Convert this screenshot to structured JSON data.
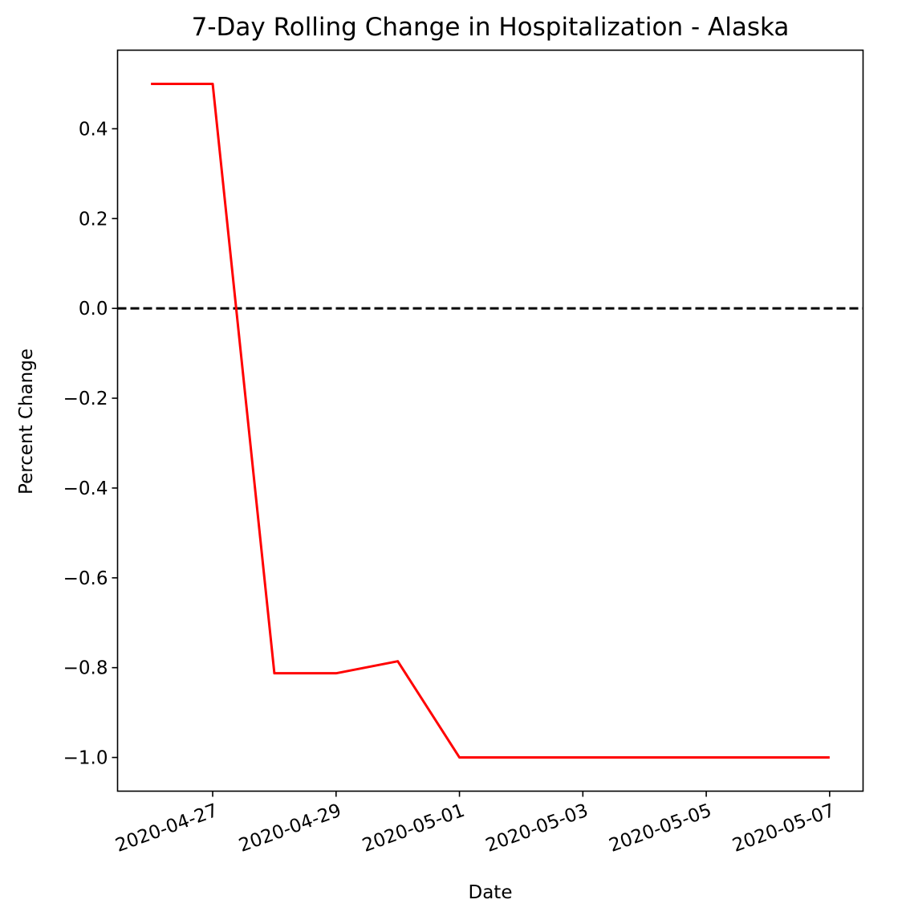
{
  "chart_data": {
    "type": "line",
    "title": "7-Day Rolling Change in Hospitalization - Alaska",
    "xlabel": "Date",
    "ylabel": "Percent Change",
    "x": [
      "2020-04-26",
      "2020-04-27",
      "2020-04-28",
      "2020-04-29",
      "2020-04-30",
      "2020-05-01",
      "2020-05-02",
      "2020-05-03",
      "2020-05-04",
      "2020-05-05",
      "2020-05-06",
      "2020-05-07"
    ],
    "series": [
      {
        "values": [
          0.5,
          0.5,
          -0.8125,
          -0.8125,
          -0.7857,
          -1.0,
          -1.0,
          -1.0,
          -1.0,
          -1.0,
          -1.0,
          -1.0
        ],
        "color": "#ff0000"
      }
    ],
    "reference_line": {
      "y": 0.0,
      "style": "dashed",
      "color": "#000000"
    },
    "xticks": [
      "2020-04-27",
      "2020-04-29",
      "2020-05-01",
      "2020-05-03",
      "2020-05-05",
      "2020-05-07"
    ],
    "yticks": [
      0.4,
      0.2,
      0.0,
      -0.2,
      -0.4,
      -0.6,
      -0.8,
      -1.0
    ],
    "ytick_labels": [
      "0.4",
      "0.2",
      "0.0",
      "−0.2",
      "−0.4",
      "−0.6",
      "−0.8",
      "−1.0"
    ],
    "xlim": [
      "2020-04-25T11:00",
      "2020-05-07T13:00"
    ],
    "ylim": [
      -1.075,
      0.575
    ],
    "grid": false
  }
}
